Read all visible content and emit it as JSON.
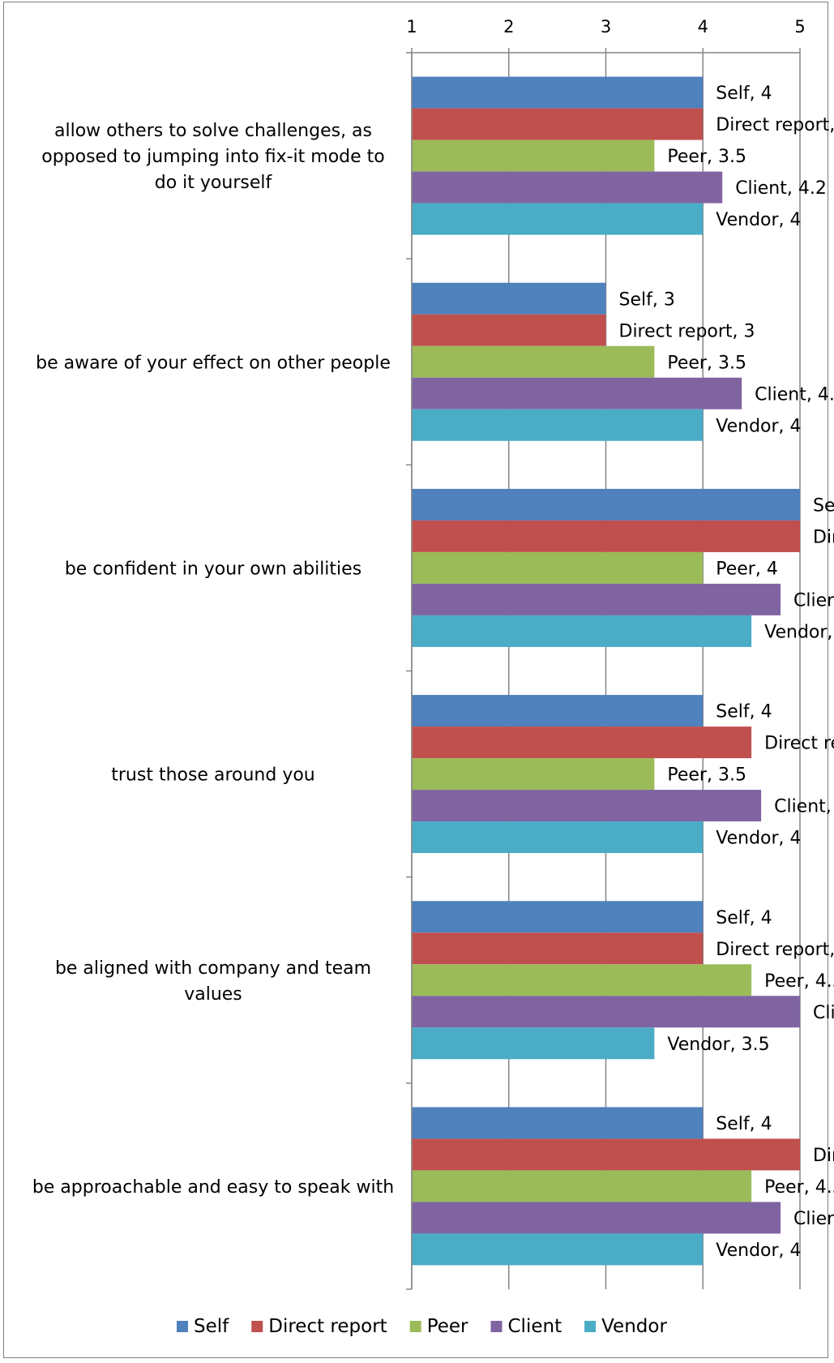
{
  "chart_data": {
    "type": "bar",
    "orientation": "horizontal",
    "categories": [
      "allow others to solve challenges, as opposed to jumping into fix-it mode to do it yourself",
      "be aware of your effect on other people",
      "be confident in your own abilities",
      "trust those around you",
      "be aligned with company and team values",
      "be approachable and easy to speak with"
    ],
    "category_lines": [
      [
        "allow others to solve challenges, as",
        "opposed to jumping into fix-it mode to",
        "do it yourself"
      ],
      [
        "be aware of your effect on other people"
      ],
      [
        "be confident in your own abilities"
      ],
      [
        "trust those around you"
      ],
      [
        "be aligned with company and team",
        "values"
      ],
      [
        "be approachable and easy to speak with"
      ]
    ],
    "series": [
      {
        "name": "Self",
        "color": "#4f81bd",
        "values": [
          4,
          3,
          5,
          4,
          4,
          4
        ]
      },
      {
        "name": "Direct report",
        "color": "#c0504d",
        "values": [
          4,
          3,
          5,
          4.5,
          4,
          5
        ]
      },
      {
        "name": "Peer",
        "color": "#9bbb59",
        "values": [
          3.5,
          3.5,
          4,
          3.5,
          4.5,
          4.5
        ]
      },
      {
        "name": "Client",
        "color": "#8064a2",
        "values": [
          4.2,
          4.4,
          4.8,
          4.6,
          5,
          4.8
        ]
      },
      {
        "name": "Vendor",
        "color": "#4bacc6",
        "values": [
          4,
          4,
          4.5,
          4,
          3.5,
          4
        ]
      }
    ],
    "xlim": [
      1,
      5
    ],
    "xticks": [
      "1",
      "2",
      "3",
      "4",
      "5"
    ],
    "data_labels": true,
    "legend_position": "bottom",
    "grid": "vertical"
  }
}
